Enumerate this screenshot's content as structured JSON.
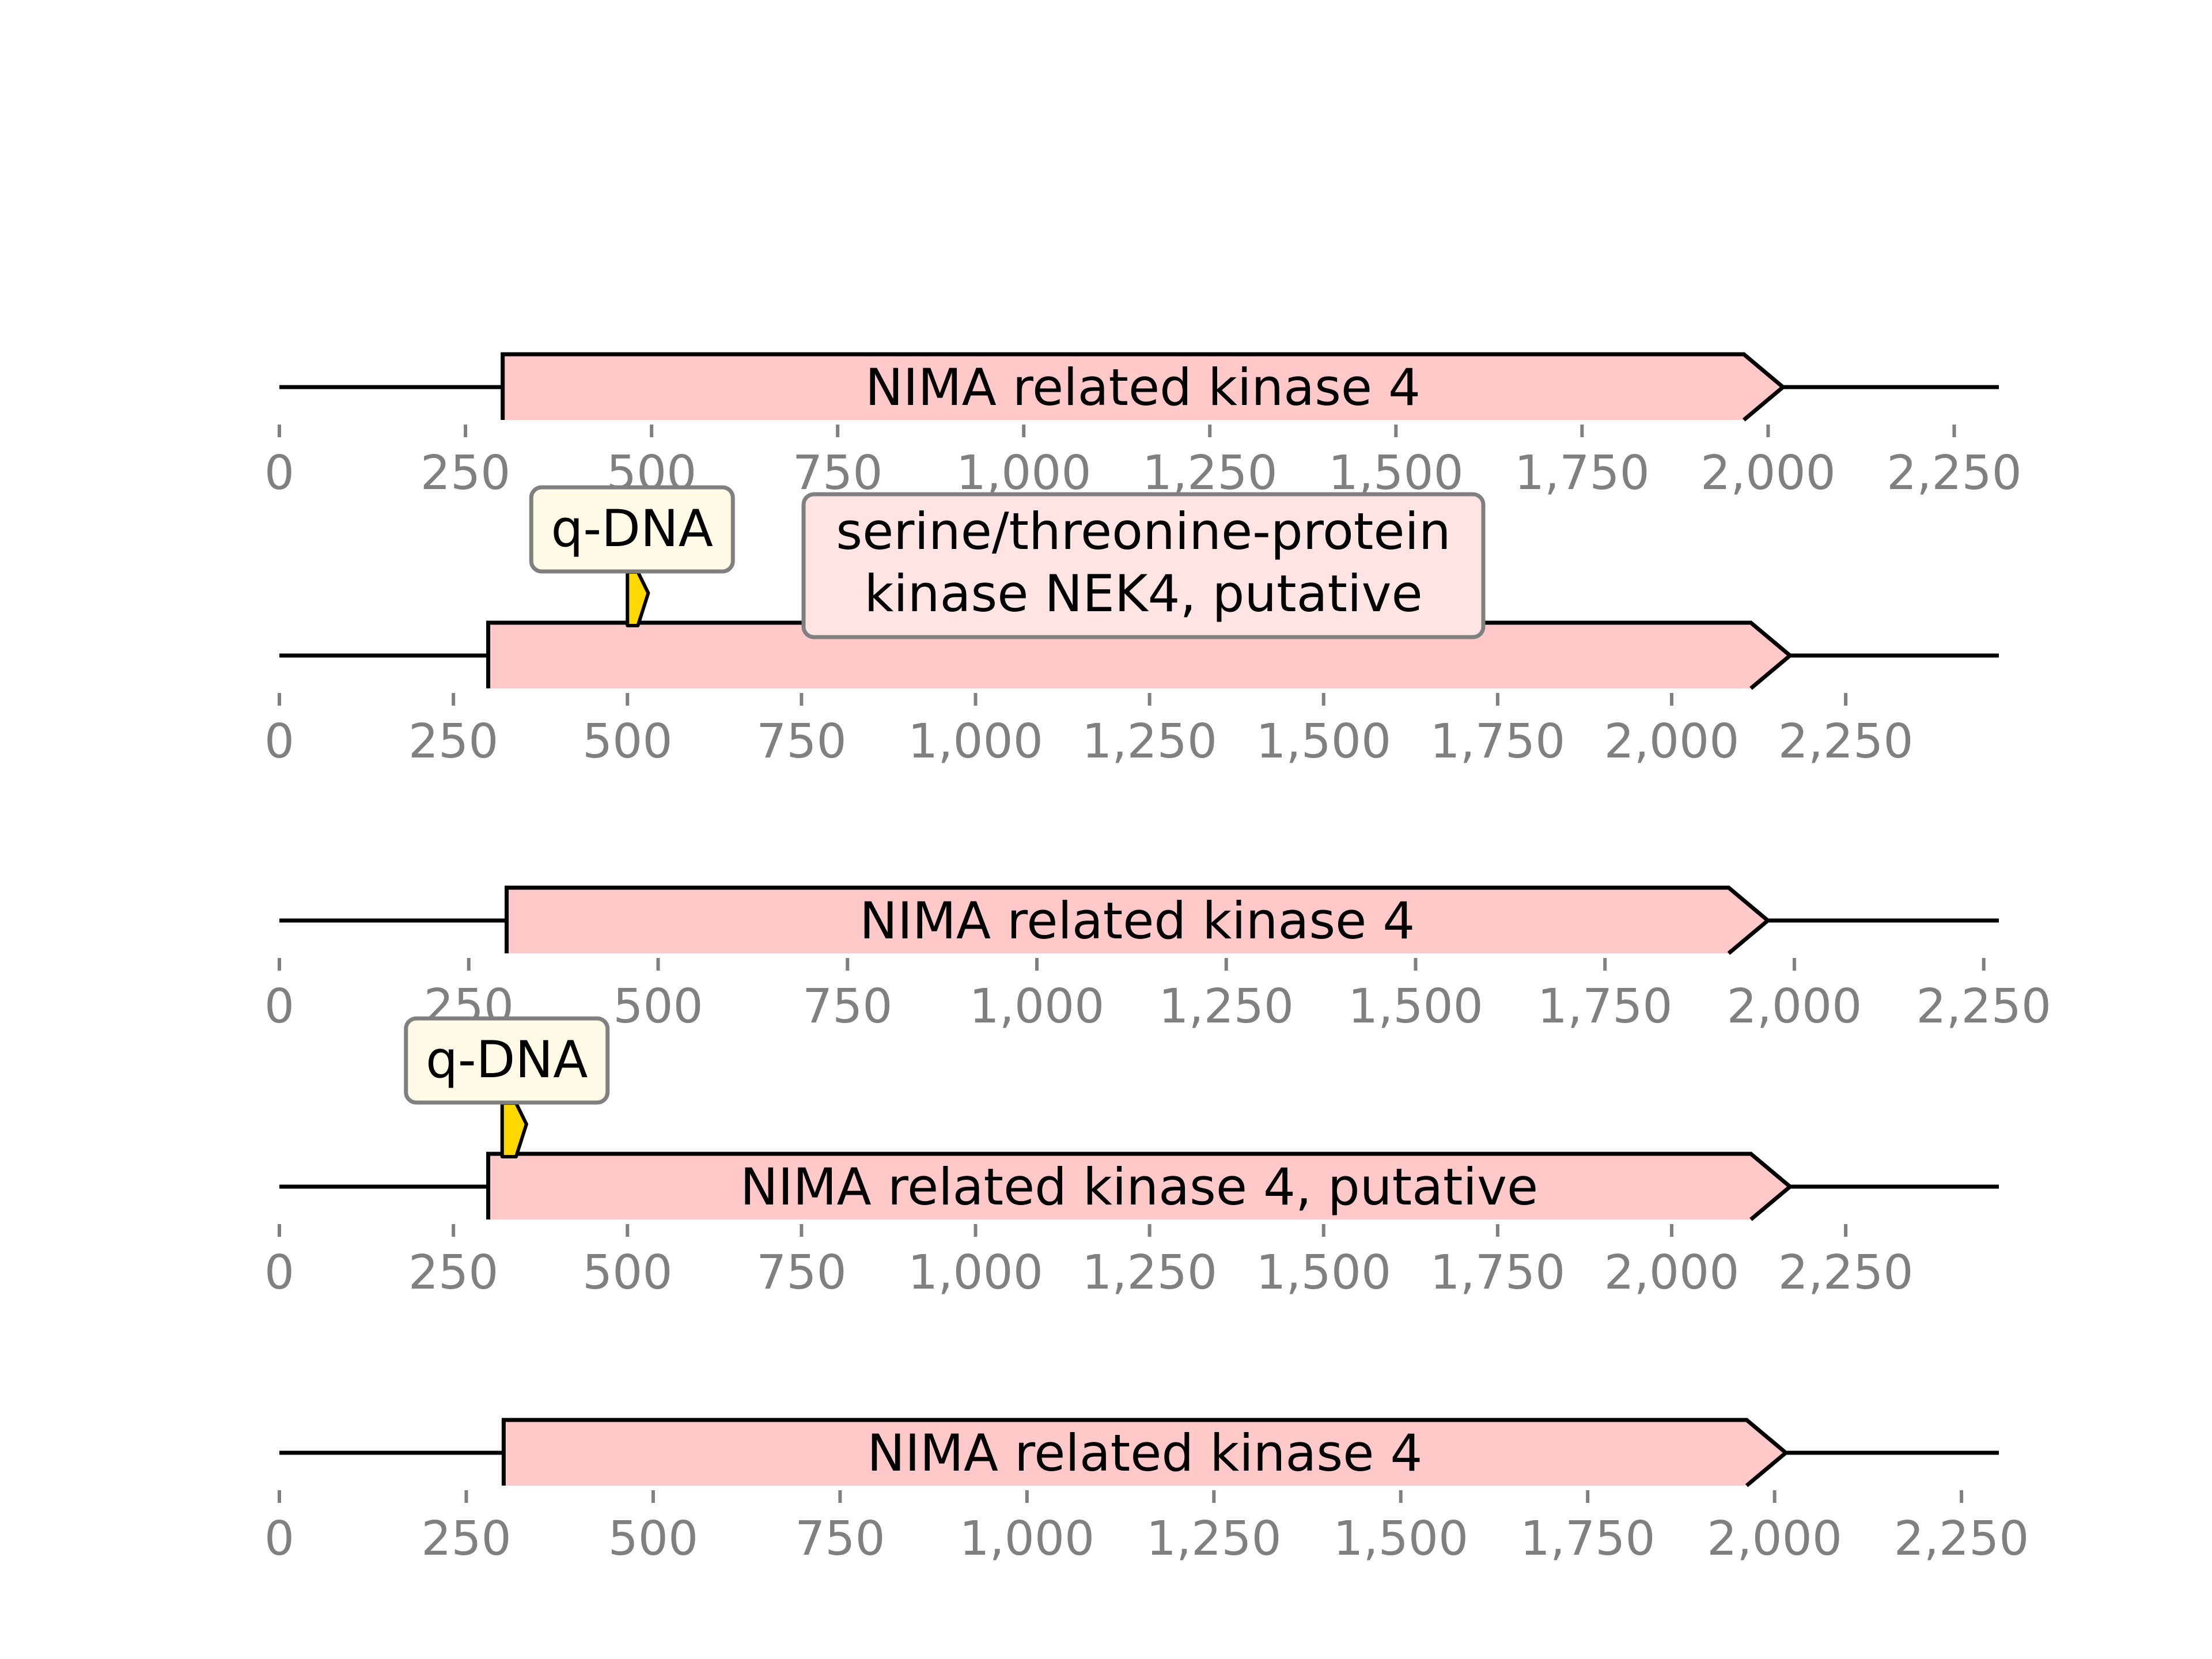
{
  "colors": {
    "feature_fill": "#ffc9c9",
    "motif_fill": "#ffd800",
    "line": "#000000",
    "tick": "#808080",
    "callout_qdna_fill": "#fffbe6",
    "callout_feature_fill": "#ffe4e4",
    "callout_border": "#808080"
  },
  "chart_data": {
    "type": "gene_map",
    "tracks": [
      {
        "length": 2310,
        "ticks": [
          0,
          250,
          500,
          750,
          1000,
          1250,
          1500,
          1750,
          2000,
          2250
        ],
        "tick_labels": [
          "0",
          "250",
          "500",
          "750",
          "1,000",
          "1,250",
          "1,500",
          "1,750",
          "2,000",
          "2,250"
        ],
        "features": [
          {
            "start": 300,
            "end": 2020,
            "strand": 1,
            "label": "NIMA related kinase 4",
            "label_style": "inline"
          }
        ],
        "motifs": []
      },
      {
        "length": 2470,
        "ticks": [
          0,
          250,
          500,
          750,
          1000,
          1250,
          1500,
          1750,
          2000,
          2250
        ],
        "tick_labels": [
          "0",
          "250",
          "500",
          "750",
          "1,000",
          "1,250",
          "1,500",
          "1,750",
          "2,000",
          "2,250"
        ],
        "features": [
          {
            "start": 300,
            "end": 2170,
            "strand": 1,
            "label": "serine/threonine-protein\nkinase NEK4, putative",
            "label_style": "box"
          }
        ],
        "motifs": [
          {
            "start": 500,
            "end": 515,
            "label": "q-DNA"
          }
        ]
      },
      {
        "length": 2270,
        "ticks": [
          0,
          250,
          500,
          750,
          1000,
          1250,
          1500,
          1750,
          2000,
          2250
        ],
        "tick_labels": [
          "0",
          "250",
          "500",
          "750",
          "1,000",
          "1,250",
          "1,500",
          "1,750",
          "2,000",
          "2,250"
        ],
        "features": [
          {
            "start": 300,
            "end": 1965,
            "strand": 1,
            "label": "NIMA related kinase 4",
            "label_style": "inline"
          }
        ],
        "motifs": []
      },
      {
        "length": 2470,
        "ticks": [
          0,
          250,
          500,
          750,
          1000,
          1250,
          1500,
          1750,
          2000,
          2250
        ],
        "tick_labels": [
          "0",
          "250",
          "500",
          "750",
          "1,000",
          "1,250",
          "1,500",
          "1,750",
          "2,000",
          "2,250"
        ],
        "features": [
          {
            "start": 300,
            "end": 2170,
            "strand": 1,
            "label": "NIMA related kinase 4, putative",
            "label_style": "inline"
          }
        ],
        "motifs": [
          {
            "start": 320,
            "end": 340,
            "label": "q-DNA"
          }
        ]
      },
      {
        "length": 2300,
        "ticks": [
          0,
          250,
          500,
          750,
          1000,
          1250,
          1500,
          1750,
          2000,
          2250
        ],
        "tick_labels": [
          "0",
          "250",
          "500",
          "750",
          "1,000",
          "1,250",
          "1,500",
          "1,750",
          "2,000",
          "2,250"
        ],
        "features": [
          {
            "start": 300,
            "end": 2015,
            "strand": 1,
            "label": "NIMA related kinase 4",
            "label_style": "inline"
          }
        ],
        "motifs": []
      }
    ]
  }
}
